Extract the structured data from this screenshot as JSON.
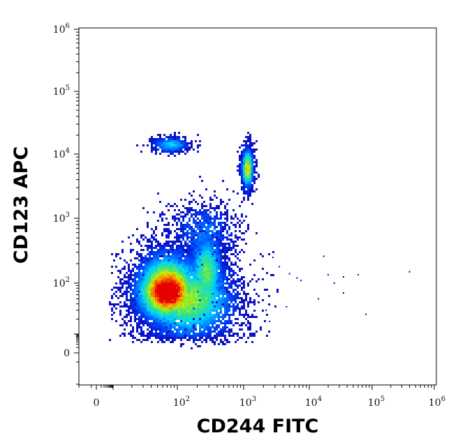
{
  "chart_data": {
    "type": "scatter",
    "title": "",
    "xlabel": "CD244 FITC",
    "ylabel": "CD123 APC",
    "x_scale": "biexponential",
    "y_scale": "biexponential",
    "xlim": [
      -10,
      1000000
    ],
    "ylim": [
      -10,
      1000000
    ],
    "grid": false,
    "legend": "none",
    "coloring": "density (blue-cyan-green-yellow-red)",
    "x_ticks": [
      {
        "base": "",
        "exp": "",
        "text": "0",
        "value": 0
      },
      {
        "base": "10",
        "exp": "2",
        "text": "",
        "value": 100
      },
      {
        "base": "10",
        "exp": "3",
        "text": "",
        "value": 1000
      },
      {
        "base": "10",
        "exp": "4",
        "text": "",
        "value": 10000
      },
      {
        "base": "10",
        "exp": "5",
        "text": "",
        "value": 100000
      },
      {
        "base": "10",
        "exp": "6",
        "text": "",
        "value": 1000000
      }
    ],
    "y_ticks": [
      {
        "base": "",
        "exp": "",
        "text": "0",
        "value": 0
      },
      {
        "base": "10",
        "exp": "2",
        "text": "",
        "value": 100
      },
      {
        "base": "10",
        "exp": "3",
        "text": "",
        "value": 1000
      },
      {
        "base": "10",
        "exp": "4",
        "text": "",
        "value": 10000
      },
      {
        "base": "10",
        "exp": "5",
        "text": "",
        "value": 100000
      },
      {
        "base": "10",
        "exp": "6",
        "text": "",
        "value": 1000000
      }
    ],
    "populations": [
      {
        "cx": 70,
        "cy": 70,
        "sx": 0.28,
        "sy": 0.35,
        "count": 5200,
        "peak": 1.0
      },
      {
        "cx": 150,
        "cy": 45,
        "sx": 0.42,
        "sy": 0.45,
        "count": 3800,
        "peak": 0.55
      },
      {
        "cx": 280,
        "cy": 150,
        "sx": 0.14,
        "sy": 0.35,
        "count": 1600,
        "peak": 0.5
      },
      {
        "cx": 250,
        "cy": 600,
        "sx": 0.28,
        "sy": 0.3,
        "count": 700,
        "peak": 0.2
      },
      {
        "cx": 80,
        "cy": 14000,
        "sx": 0.16,
        "sy": 0.07,
        "count": 420,
        "peak": 0.3
      },
      {
        "cx": 1150,
        "cy": 6000,
        "sx": 0.05,
        "sy": 0.18,
        "count": 900,
        "peak": 0.55
      }
    ],
    "outliers": [
      {
        "x": 2800,
        "y": 250
      },
      {
        "x": 3500,
        "y": 180
      },
      {
        "x": 5000,
        "y": 140
      },
      {
        "x": 6500,
        "y": 120
      },
      {
        "x": 7500,
        "y": 110
      },
      {
        "x": 17000,
        "y": 260
      },
      {
        "x": 20000,
        "y": 135
      },
      {
        "x": 25000,
        "y": 100
      },
      {
        "x": 35000,
        "y": 125
      },
      {
        "x": 60000,
        "y": 135
      },
      {
        "x": 400000,
        "y": 150
      },
      {
        "x": 80000,
        "y": 25
      },
      {
        "x": 14000,
        "y": 50
      },
      {
        "x": 35000,
        "y": 65
      },
      {
        "x": 4500,
        "y": 35
      },
      {
        "x": 2200,
        "y": 30
      },
      {
        "x": 2500,
        "y": 18
      },
      {
        "x": 40,
        "y": 300
      },
      {
        "x": 30,
        "y": 250
      }
    ]
  }
}
